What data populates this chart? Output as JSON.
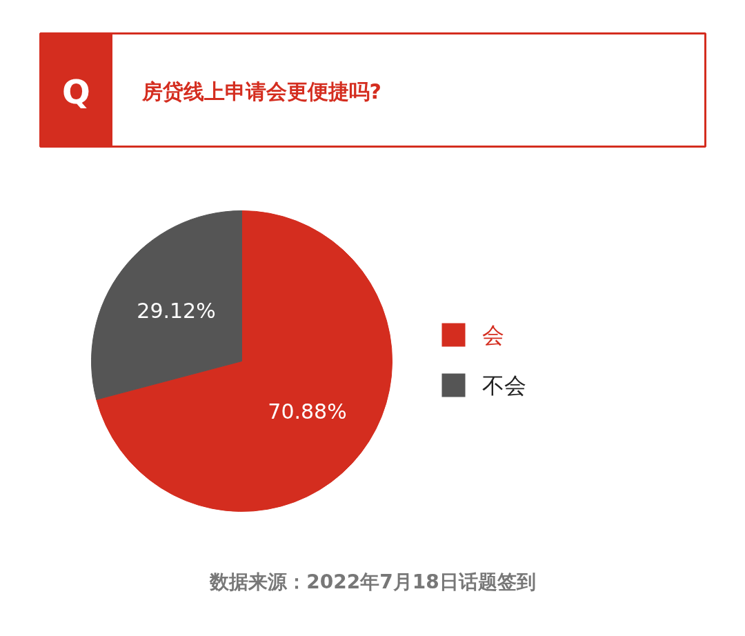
{
  "chart_data": {
    "type": "pie",
    "title": "房贷线上申请会更便捷吗?",
    "categories": [
      "会",
      "不会"
    ],
    "values": [
      70.88,
      29.12
    ],
    "colors": [
      "#d42d1f",
      "#555555"
    ],
    "value_labels": [
      "70.88%",
      "29.12%"
    ],
    "legend": "right",
    "annotations": [
      "Q",
      "数据来源：2022年7月18日话题签到"
    ]
  }
}
